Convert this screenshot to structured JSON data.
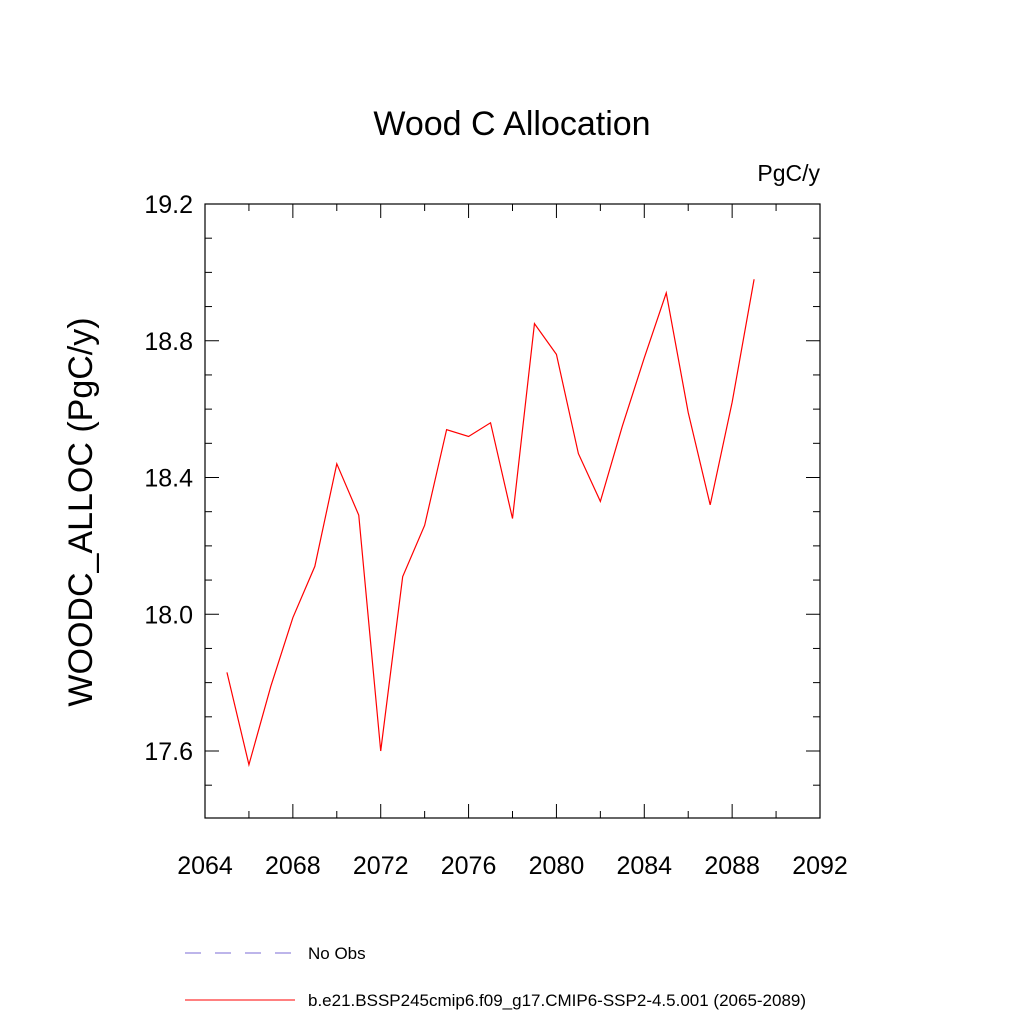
{
  "chart_data": {
    "type": "line",
    "title": "Wood C Allocation",
    "units_label": "PgC/y",
    "xlabel": "",
    "ylabel": "WOODC_ALLOC  (PgC/y)",
    "xlim": [
      2064,
      2092
    ],
    "ylim": [
      17.4,
      19.25
    ],
    "x_ticks": [
      2064,
      2068,
      2072,
      2076,
      2080,
      2084,
      2088,
      2092
    ],
    "x_tick_labels": [
      "2064",
      "2068",
      "2072",
      "2076",
      "2080",
      "2084",
      "2088",
      "2092"
    ],
    "y_ticks": [
      17.6,
      18.0,
      18.4,
      18.8,
      19.2
    ],
    "y_tick_labels": [
      "17.6",
      "18.0",
      "18.4",
      "18.8",
      "19.2"
    ],
    "y_minor_step": 0.1,
    "x_minor_step": 2,
    "grid": false,
    "legend_position": "bottom",
    "series": [
      {
        "name": "b.e21.BSSP245cmip6.f09_g17.CMIP6-SSP2-4.5.001 (2065-2089)",
        "color": "#ff0000",
        "dash": "solid",
        "x": [
          2065,
          2066,
          2067,
          2068,
          2069,
          2070,
          2071,
          2072,
          2073,
          2074,
          2075,
          2076,
          2077,
          2078,
          2079,
          2080,
          2081,
          2082,
          2083,
          2084,
          2085,
          2086,
          2087,
          2088,
          2089
        ],
        "y": [
          17.83,
          17.56,
          17.79,
          17.99,
          18.14,
          18.44,
          18.29,
          17.6,
          18.11,
          18.26,
          18.54,
          18.52,
          18.56,
          18.28,
          18.85,
          18.76,
          18.47,
          18.33,
          18.55,
          18.75,
          18.94,
          18.59,
          18.32,
          18.62,
          18.98
        ]
      }
    ],
    "legend": [
      {
        "label": "No Obs",
        "color": "#7b6bd6",
        "dash": "dashed"
      },
      {
        "label": "b.e21.BSSP245cmip6.f09_g17.CMIP6-SSP2-4.5.001 (2065-2089)",
        "color": "#ff0000",
        "dash": "solid"
      }
    ]
  }
}
